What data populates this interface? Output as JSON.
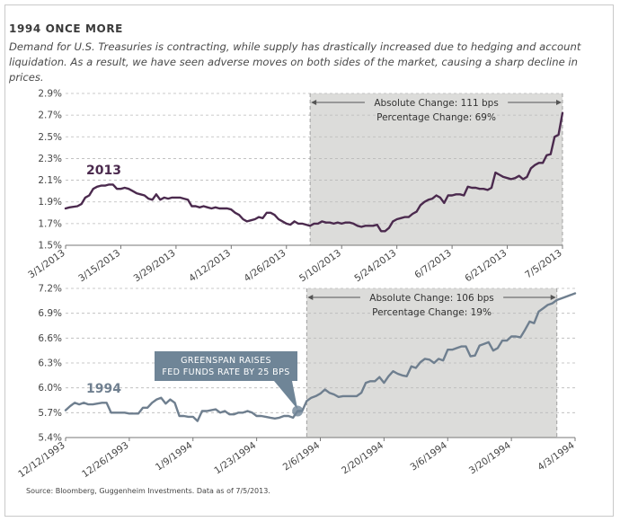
{
  "heading": "1994 ONCE MORE",
  "subtitle": "Demand for U.S. Treasuries is contracting, while supply has drastically increased due to hedging and account liquidation. As a result, we have seen adverse moves on both sides of the market, causing a sharp decline in prices.",
  "source": "Source: Bloomberg, Guggenheim Investments. Data as of 7/5/2013.",
  "colors": {
    "line_2013": "#4b2a4e",
    "line_1994": "#6f7f8f",
    "shade": "#dcdcda",
    "callout": "#6f8597",
    "grid": "#b9b9b9",
    "callout_text": "#ffffff"
  },
  "chart_data": [
    {
      "type": "line",
      "series_label": "2013",
      "ylim": [
        1.5,
        2.9
      ],
      "yticks": [
        1.5,
        1.7,
        1.9,
        2.1,
        2.3,
        2.5,
        2.7,
        2.9
      ],
      "ytick_labels": [
        "1.5%",
        "1.7%",
        "1.9%",
        "2.1%",
        "2.3%",
        "2.5%",
        "2.7%",
        "2.9%"
      ],
      "xlim": [
        0,
        126
      ],
      "xticks": [
        0,
        14,
        28,
        42,
        56,
        70,
        84,
        98,
        112,
        126
      ],
      "xtick_labels": [
        "3/1/2013",
        "3/15/2013",
        "3/29/2013",
        "4/12/2013",
        "4/26/2013",
        "5/10/2013",
        "5/24/2013",
        "6/7/2013",
        "6/21/2013",
        "7/5/2013"
      ],
      "shade_range": [
        62,
        126
      ],
      "annotation": [
        "Absolute Change: 111 bps",
        "Percentage Change: 69%"
      ],
      "x": [
        0,
        1,
        3,
        4,
        5,
        6,
        7,
        8,
        9,
        10,
        11,
        12,
        13,
        14,
        15,
        16,
        17,
        18,
        19,
        20,
        21,
        22,
        23,
        24,
        25,
        26,
        27,
        28,
        29,
        30,
        31,
        32,
        33,
        34,
        35,
        36,
        37,
        38,
        39,
        40,
        41,
        42,
        43,
        44,
        45,
        46,
        47,
        48,
        49,
        50,
        51,
        52,
        53,
        54,
        55,
        56,
        57,
        58,
        59,
        60,
        61,
        62,
        63,
        64,
        65,
        66,
        67,
        68,
        69,
        70,
        71,
        72,
        73,
        74,
        75,
        76,
        77,
        78,
        79,
        80,
        81,
        82,
        83,
        84,
        85,
        86,
        87,
        88,
        89,
        90,
        91,
        92,
        93,
        94,
        95,
        96,
        97,
        98,
        99,
        100,
        101,
        102,
        103,
        104,
        105,
        106,
        107,
        108,
        109,
        110,
        111,
        112,
        113,
        114,
        115,
        116,
        117,
        118,
        119,
        120,
        121,
        122,
        123,
        124,
        125,
        126
      ],
      "values": [
        1.84,
        1.85,
        1.86,
        1.88,
        1.94,
        1.96,
        2.02,
        2.04,
        2.05,
        2.05,
        2.06,
        2.06,
        2.02,
        2.02,
        2.03,
        2.02,
        2.0,
        1.98,
        1.97,
        1.96,
        1.93,
        1.92,
        1.97,
        1.92,
        1.94,
        1.93,
        1.94,
        1.94,
        1.94,
        1.93,
        1.92,
        1.86,
        1.86,
        1.85,
        1.86,
        1.85,
        1.84,
        1.85,
        1.84,
        1.84,
        1.84,
        1.83,
        1.8,
        1.78,
        1.74,
        1.72,
        1.73,
        1.74,
        1.76,
        1.75,
        1.8,
        1.8,
        1.78,
        1.74,
        1.72,
        1.7,
        1.69,
        1.72,
        1.7,
        1.7,
        1.69,
        1.68,
        1.7,
        1.7,
        1.72,
        1.71,
        1.71,
        1.7,
        1.71,
        1.7,
        1.71,
        1.71,
        1.7,
        1.68,
        1.67,
        1.68,
        1.68,
        1.68,
        1.69,
        1.63,
        1.63,
        1.66,
        1.72,
        1.74,
        1.75,
        1.76,
        1.76,
        1.79,
        1.81,
        1.87,
        1.9,
        1.92,
        1.93,
        1.96,
        1.94,
        1.89,
        1.96,
        1.96,
        1.97,
        1.97,
        1.96,
        2.04,
        2.03,
        2.03,
        2.02,
        2.02,
        2.01,
        2.03,
        2.17,
        2.15,
        2.13,
        2.12,
        2.11,
        2.12,
        2.14,
        2.11,
        2.13,
        2.21,
        2.24,
        2.26,
        2.26,
        2.33,
        2.34,
        2.5,
        2.52,
        2.72
      ]
    },
    {
      "type": "line",
      "series_label": "1994",
      "ylim": [
        5.4,
        7.2
      ],
      "yticks": [
        5.4,
        5.7,
        6.0,
        6.3,
        6.6,
        6.9,
        7.2
      ],
      "ytick_labels": [
        "5.4%",
        "5.7%",
        "6.0%",
        "6.3%",
        "6.6%",
        "6.9%",
        "7.2%"
      ],
      "xlim": [
        0,
        112
      ],
      "xticks": [
        0,
        14,
        28,
        42,
        56,
        70,
        84,
        98,
        112
      ],
      "xtick_labels": [
        "12/12/1993",
        "12/26/1993",
        "1/9/1994",
        "1/23/1994",
        "2/6/1994",
        "2/20/1994",
        "3/6/1994",
        "3/20/1994",
        "4/3/1994"
      ],
      "shade_range": [
        53,
        108
      ],
      "annotation": [
        "Absolute Change: 106 bps",
        "Percentage Change: 19%"
      ],
      "callout": [
        "GREENSPAN RAISES",
        "FED FUNDS RATE BY 25 BPS"
      ],
      "callout_x": 51,
      "x": [
        0,
        1,
        2,
        3,
        4,
        5,
        6,
        7,
        8,
        9,
        10,
        11,
        12,
        13,
        14,
        15,
        16,
        17,
        18,
        19,
        20,
        21,
        22,
        23,
        24,
        25,
        26,
        27,
        28,
        29,
        30,
        31,
        32,
        33,
        34,
        35,
        36,
        37,
        38,
        39,
        40,
        41,
        42,
        43,
        44,
        45,
        46,
        47,
        48,
        49,
        50,
        51,
        52,
        53,
        54,
        55,
        56,
        57,
        58,
        59,
        60,
        61,
        62,
        63,
        64,
        65,
        66,
        67,
        68,
        69,
        70,
        71,
        72,
        73,
        74,
        75,
        76,
        77,
        78,
        79,
        80,
        81,
        82,
        83,
        84,
        85,
        86,
        87,
        88,
        89,
        90,
        91,
        92,
        93,
        94,
        95,
        96,
        97,
        98,
        99,
        100,
        101,
        102,
        103,
        104,
        105,
        106,
        107,
        108,
        109,
        110,
        111,
        112
      ],
      "values": [
        5.73,
        5.78,
        5.82,
        5.8,
        5.82,
        5.8,
        5.8,
        5.81,
        5.82,
        5.82,
        5.7,
        5.7,
        5.7,
        5.7,
        5.69,
        5.69,
        5.69,
        5.76,
        5.76,
        5.82,
        5.86,
        5.88,
        5.81,
        5.86,
        5.82,
        5.66,
        5.66,
        5.65,
        5.65,
        5.6,
        5.72,
        5.72,
        5.73,
        5.74,
        5.7,
        5.72,
        5.68,
        5.68,
        5.7,
        5.7,
        5.72,
        5.7,
        5.66,
        5.66,
        5.65,
        5.64,
        5.63,
        5.64,
        5.66,
        5.66,
        5.64,
        5.72,
        5.72,
        5.84,
        5.88,
        5.9,
        5.93,
        5.98,
        5.94,
        5.92,
        5.89,
        5.9,
        5.9,
        5.9,
        5.9,
        5.94,
        6.06,
        6.08,
        6.08,
        6.13,
        6.06,
        6.14,
        6.2,
        6.17,
        6.15,
        6.14,
        6.26,
        6.24,
        6.31,
        6.35,
        6.34,
        6.3,
        6.35,
        6.33,
        6.46,
        6.46,
        6.48,
        6.5,
        6.5,
        6.38,
        6.39,
        6.51,
        6.53,
        6.55,
        6.45,
        6.48,
        6.57,
        6.57,
        6.62,
        6.62,
        6.61,
        6.7,
        6.8,
        6.78,
        6.92,
        6.96,
        7.0,
        7.02,
        7.06,
        7.08,
        7.1,
        7.12,
        7.14
      ]
    }
  ]
}
